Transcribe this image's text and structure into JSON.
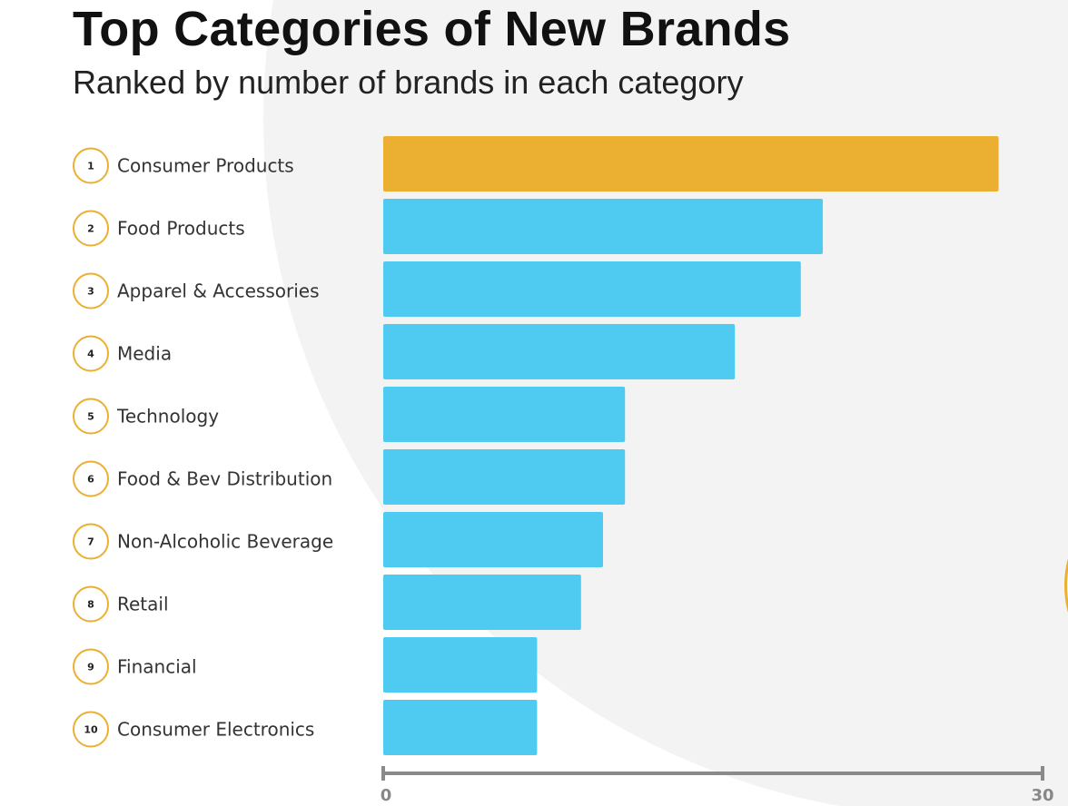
{
  "title": "Top Categories of New Brands",
  "subtitle": "Ranked by number of brands in each category",
  "colors": {
    "highlight": "#ebb032",
    "bar": "#4fcaf0",
    "circle_border": "#ebb032",
    "axis": "#8a8a8a",
    "label": "#333333"
  },
  "chart_data": {
    "type": "bar",
    "orientation": "horizontal",
    "title": "Top Categories of New Brands",
    "subtitle": "Ranked by number of brands in each category",
    "categories": [
      "Consumer Products",
      "Food Products",
      "Apparel & Accessories",
      "Media",
      "Technology",
      "Food & Bev Distribution",
      "Non-Alcoholic Beverage",
      "Retail",
      "Financial",
      "Consumer Electronics"
    ],
    "ranks": [
      "1",
      "2",
      "3",
      "4",
      "5",
      "6",
      "7",
      "8",
      "9",
      "10"
    ],
    "values": [
      28,
      20,
      19,
      16,
      11,
      11,
      10,
      9,
      7,
      7
    ],
    "highlight_index": 0,
    "xlim": [
      0,
      30
    ],
    "xticks": [
      "0",
      "30"
    ],
    "xlabel": "",
    "ylabel": "",
    "grid": false,
    "legend": "none"
  }
}
